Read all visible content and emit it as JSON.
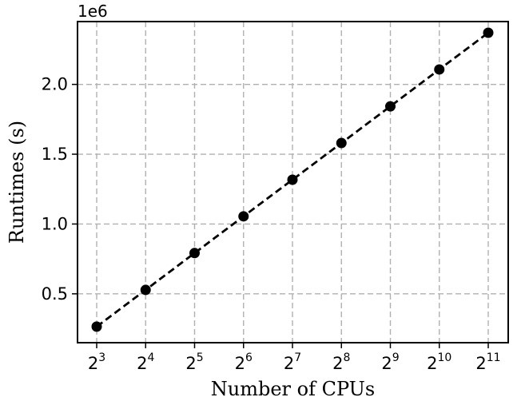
{
  "chart_data": {
    "type": "line",
    "xlabel": "Number of CPUs",
    "ylabel": "Runtimes (s)",
    "y_offset_label": "1e6",
    "x_scale": "log2",
    "x_tick_base": "2",
    "x_tick_exponents": [
      "3",
      "4",
      "5",
      "6",
      "7",
      "8",
      "9",
      "10",
      "11"
    ],
    "x": [
      8,
      16,
      32,
      64,
      128,
      256,
      512,
      1024,
      2048
    ],
    "y_ticks": [
      0.5,
      1.0,
      1.5,
      2.0
    ],
    "y_tick_labels": [
      "0.5",
      "1.0",
      "1.5",
      "2.0"
    ],
    "ylim": [
      0.15,
      2.45
    ],
    "y_units_multiplier": 1000000,
    "series": [
      {
        "values": [
          0.265,
          0.528,
          0.792,
          1.055,
          1.317,
          1.58,
          1.843,
          2.107,
          2.37
        ],
        "color": "#000000",
        "line_style": "dashed",
        "marker": "circle"
      }
    ],
    "grid": true,
    "grid_style": "dashed"
  }
}
